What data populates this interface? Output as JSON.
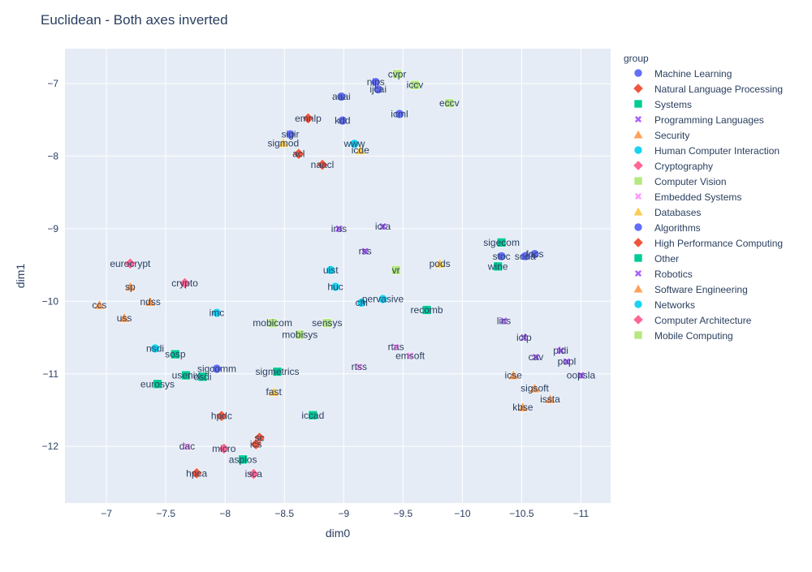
{
  "chart_data": {
    "type": "scatter",
    "title": "Euclidean - Both axes inverted",
    "xlabel": "dim0",
    "ylabel": "dim1",
    "xlim": [
      -11.25,
      -6.65
    ],
    "ylim": [
      -12.78,
      -6.52
    ],
    "x_reversed": true,
    "y_reversed": true,
    "x_ticks": [
      -11,
      -10.5,
      -10,
      -9.5,
      -9,
      -8.5,
      -8,
      -7.5,
      -7
    ],
    "x_tick_labels": [
      "−11",
      "−10.5",
      "−10",
      "−9.5",
      "−9",
      "−8.5",
      "−8",
      "−7.5",
      "−7"
    ],
    "y_ticks": [
      -7,
      -8,
      -9,
      -10,
      -11,
      -12
    ],
    "y_tick_labels": [
      "−7",
      "−8",
      "−9",
      "−10",
      "−11",
      "−12"
    ],
    "grid": true,
    "legend_title": "group",
    "legend_position": "right",
    "series": [
      {
        "name": "Machine Learning",
        "color": "#636EFA",
        "symbol": "circle",
        "points": [
          {
            "label": "nips",
            "x": -9.27,
            "y": -6.98
          },
          {
            "label": "ijcai",
            "x": -9.29,
            "y": -7.08
          },
          {
            "label": "aaai",
            "x": -8.98,
            "y": -7.18
          },
          {
            "label": "icml",
            "x": -9.47,
            "y": -7.42
          },
          {
            "label": "kdd",
            "x": -8.99,
            "y": -7.51
          }
        ]
      },
      {
        "name": "Natural Language Processing",
        "color": "#EF553B",
        "symbol": "diamond",
        "points": [
          {
            "label": "emnlp",
            "x": -8.7,
            "y": -7.48
          },
          {
            "label": "acl",
            "x": -8.62,
            "y": -7.97
          },
          {
            "label": "naacl",
            "x": -8.82,
            "y": -8.12
          }
        ]
      },
      {
        "name": "Systems",
        "color": "#00CC96",
        "symbol": "square",
        "points": [
          {
            "label": "sosp",
            "x": -7.58,
            "y": -10.73
          },
          {
            "label": "osdi",
            "x": -7.81,
            "y": -11.04
          },
          {
            "label": "usenix",
            "x": -7.67,
            "y": -11.02
          },
          {
            "label": "eurosys",
            "x": -7.43,
            "y": -11.14
          }
        ]
      },
      {
        "name": "Programming Languages",
        "color": "#AB63FA",
        "symbol": "x",
        "points": [
          {
            "label": "pldi",
            "x": -10.83,
            "y": -10.68
          },
          {
            "label": "popl",
            "x": -10.88,
            "y": -10.83
          },
          {
            "label": "cav",
            "x": -10.62,
            "y": -10.77
          },
          {
            "label": "oopsla",
            "x": -11.0,
            "y": -11.02
          },
          {
            "label": "icfp",
            "x": -10.52,
            "y": -10.5
          },
          {
            "label": "lics",
            "x": -10.35,
            "y": -10.27
          }
        ]
      },
      {
        "name": "Security",
        "color": "#FFA15A",
        "symbol": "triangle",
        "points": [
          {
            "label": "sp",
            "x": -7.2,
            "y": -9.8
          },
          {
            "label": "ndss",
            "x": -7.37,
            "y": -10.01
          },
          {
            "label": "ccs",
            "x": -6.94,
            "y": -10.05
          },
          {
            "label": "uss",
            "x": -7.15,
            "y": -10.23
          }
        ]
      },
      {
        "name": "Human Computer Interaction",
        "color": "#19D3F3",
        "symbol": "circle",
        "points": [
          {
            "label": "www",
            "x": -9.09,
            "y": -7.83
          },
          {
            "label": "uist",
            "x": -8.89,
            "y": -9.57
          },
          {
            "label": "huc",
            "x": -8.93,
            "y": -9.8
          },
          {
            "label": "chi",
            "x": -9.15,
            "y": -10.02
          },
          {
            "label": "imc",
            "x": -7.93,
            "y": -10.16
          },
          {
            "label": "nsdi",
            "x": -7.41,
            "y": -10.65
          }
        ]
      },
      {
        "name": "Cryptography",
        "color": "#FF6692",
        "symbol": "diamond",
        "points": [
          {
            "label": "eurocrypt",
            "x": -7.2,
            "y": -9.48
          },
          {
            "label": "crypto",
            "x": -7.66,
            "y": -9.75
          }
        ]
      },
      {
        "name": "Computer Vision",
        "color": "#B6E880",
        "symbol": "square",
        "points": [
          {
            "label": "cvpr",
            "x": -9.45,
            "y": -6.87
          },
          {
            "label": "iccv",
            "x": -9.6,
            "y": -7.02
          },
          {
            "label": "eccv",
            "x": -9.89,
            "y": -7.27
          }
        ]
      },
      {
        "name": "Embedded Systems",
        "color": "#FF97FF",
        "symbol": "x",
        "points": [
          {
            "label": "rtas",
            "x": -9.44,
            "y": -10.63
          },
          {
            "label": "emsoft",
            "x": -9.56,
            "y": -10.75
          },
          {
            "label": "rtss",
            "x": -9.13,
            "y": -10.9
          },
          {
            "label": "dac",
            "x": -7.68,
            "y": -12.0
          }
        ]
      },
      {
        "name": "Databases",
        "color": "#FECB52",
        "symbol": "triangle",
        "points": [
          {
            "label": "sigmod",
            "x": -8.49,
            "y": -7.82
          },
          {
            "label": "icde",
            "x": -9.14,
            "y": -7.92
          },
          {
            "label": "pods",
            "x": -9.81,
            "y": -9.48
          },
          {
            "label": "fast",
            "x": -8.41,
            "y": -11.25
          }
        ]
      },
      {
        "name": "Algorithms",
        "color": "#636EFA",
        "symbol": "circle",
        "points": [
          {
            "label": "sigir",
            "x": -8.55,
            "y": -7.7
          },
          {
            "label": "focs",
            "x": -10.61,
            "y": -9.35
          },
          {
            "label": "soda",
            "x": -10.53,
            "y": -9.38
          },
          {
            "label": "stoc",
            "x": -10.33,
            "y": -9.38
          },
          {
            "label": "sigcomm",
            "x": -7.93,
            "y": -10.93
          }
        ]
      },
      {
        "name": "High Performance Computing",
        "color": "#EF553B",
        "symbol": "diamond",
        "points": [
          {
            "label": "hpdc",
            "x": -7.97,
            "y": -11.58
          },
          {
            "label": "sc",
            "x": -8.29,
            "y": -11.88
          },
          {
            "label": "ics",
            "x": -8.26,
            "y": -11.97
          },
          {
            "label": "hpca",
            "x": -7.76,
            "y": -12.37
          }
        ]
      },
      {
        "name": "Other",
        "color": "#00CC96",
        "symbol": "square",
        "points": [
          {
            "label": "sigecom",
            "x": -10.33,
            "y": -9.19
          },
          {
            "label": "wine",
            "x": -10.3,
            "y": -9.52
          },
          {
            "label": "recomb",
            "x": -9.7,
            "y": -10.12
          },
          {
            "label": "sigmetrics",
            "x": -8.44,
            "y": -10.97
          },
          {
            "label": "iccad",
            "x": -8.74,
            "y": -11.57
          },
          {
            "label": "asplos",
            "x": -8.15,
            "y": -12.18
          }
        ]
      },
      {
        "name": "Robotics",
        "color": "#AB63FA",
        "symbol": "x",
        "points": [
          {
            "label": "icra",
            "x": -9.33,
            "y": -8.97
          },
          {
            "label": "iros",
            "x": -8.96,
            "y": -9.0
          },
          {
            "label": "rss",
            "x": -9.18,
            "y": -9.31
          }
        ]
      },
      {
        "name": "Software Engineering",
        "color": "#FFA15A",
        "symbol": "triangle",
        "points": [
          {
            "label": "icse",
            "x": -10.43,
            "y": -11.02
          },
          {
            "label": "sigsoft",
            "x": -10.61,
            "y": -11.2
          },
          {
            "label": "issta",
            "x": -10.74,
            "y": -11.35
          },
          {
            "label": "kbse",
            "x": -10.51,
            "y": -11.46
          }
        ]
      },
      {
        "name": "Networks",
        "color": "#19D3F3",
        "symbol": "circle",
        "points": [
          {
            "label": "pervasive",
            "x": -9.33,
            "y": -9.97
          }
        ]
      },
      {
        "name": "Computer Architecture",
        "color": "#FF6692",
        "symbol": "diamond",
        "points": [
          {
            "label": "micro",
            "x": -7.99,
            "y": -12.03
          },
          {
            "label": "isca",
            "x": -8.24,
            "y": -12.38
          }
        ]
      },
      {
        "name": "Mobile Computing",
        "color": "#B6E880",
        "symbol": "square",
        "points": [
          {
            "label": "vr",
            "x": -9.44,
            "y": -9.57
          },
          {
            "label": "sensys",
            "x": -8.86,
            "y": -10.3
          },
          {
            "label": "mobicom",
            "x": -8.4,
            "y": -10.3
          },
          {
            "label": "mobisys",
            "x": -8.63,
            "y": -10.46
          }
        ]
      }
    ]
  }
}
